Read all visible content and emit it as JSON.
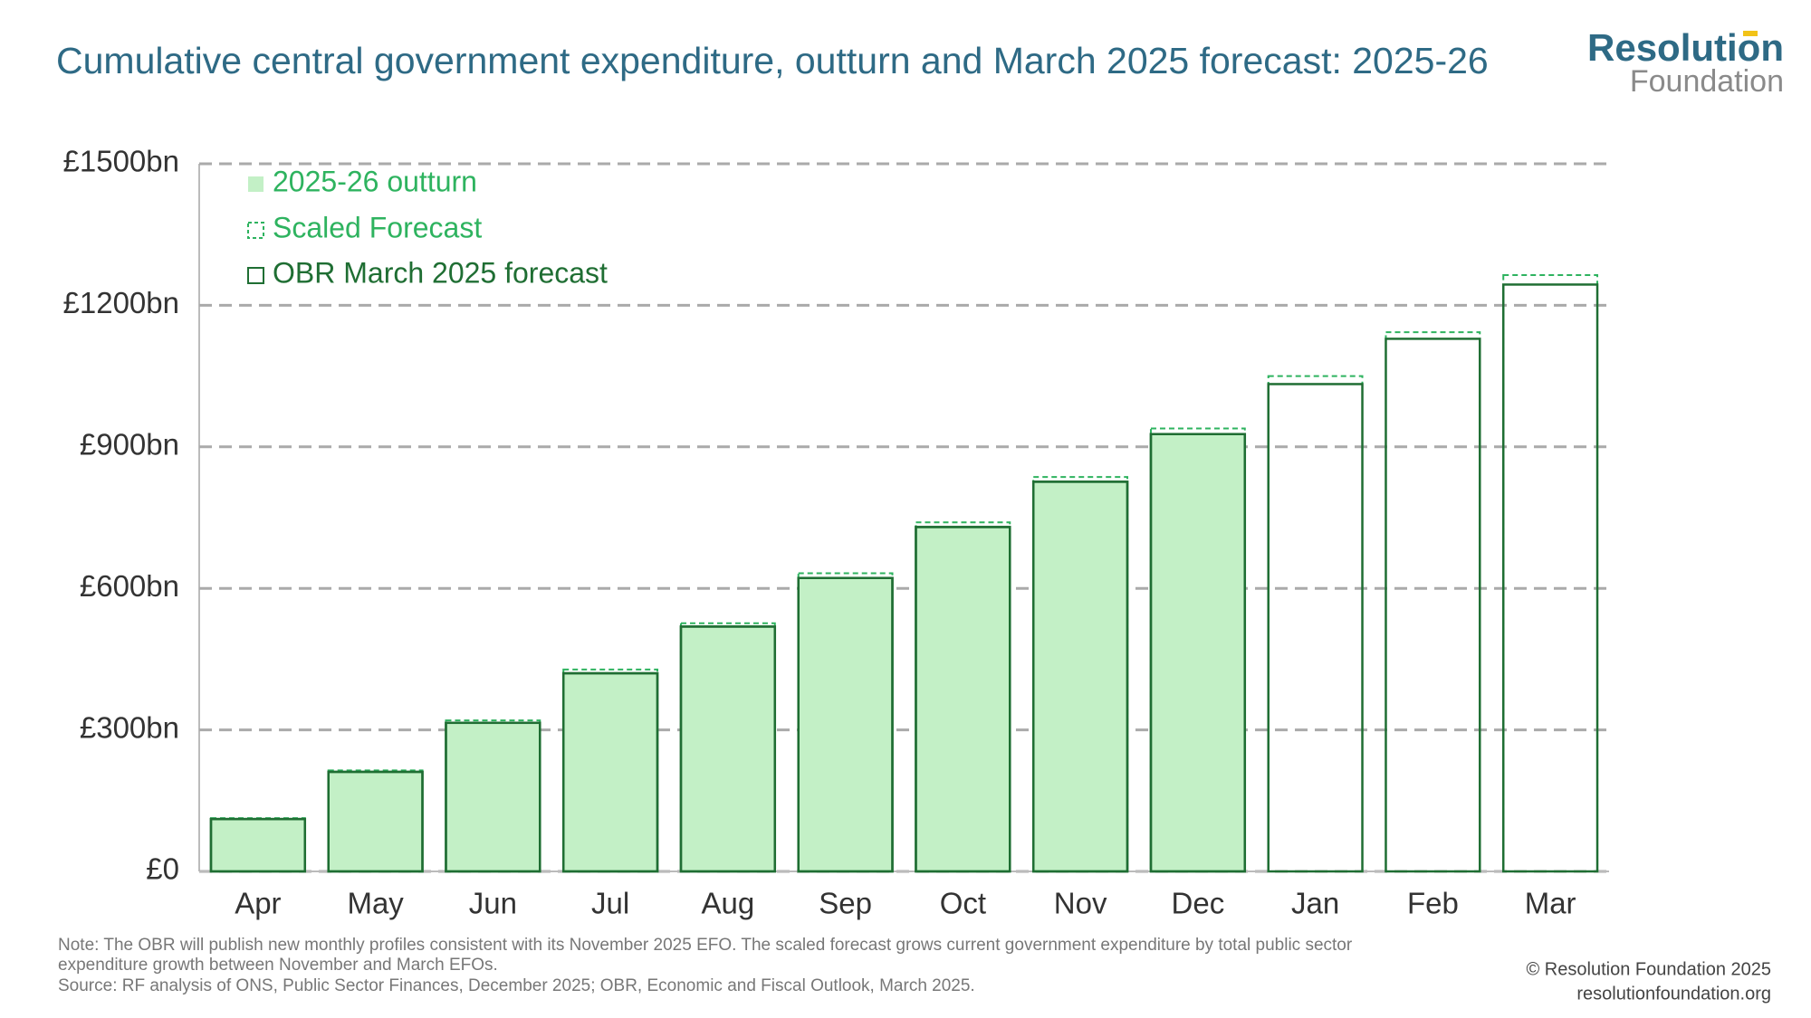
{
  "chart_data": {
    "type": "bar",
    "title": "Cumulative central government expenditure, outturn and March 2025 forecast: 2025-26",
    "brand": [
      "Resolution",
      "Foundation"
    ],
    "categories": [
      "Apr",
      "May",
      "Jun",
      "Jul",
      "Aug",
      "Sep",
      "Oct",
      "Nov",
      "Dec",
      "Jan",
      "Feb",
      "Mar"
    ],
    "series": [
      {
        "name": "2025-26 outturn",
        "color": "#c3f0c6",
        "values": [
          111,
          211,
          315,
          420,
          519,
          622,
          730,
          826,
          927,
          null,
          null,
          null
        ]
      },
      {
        "name": "Scaled Forecast",
        "color": "#2eb35f",
        "values": [
          113,
          214,
          320,
          428,
          526,
          632,
          740,
          836,
          939,
          1050,
          1143,
          1264
        ]
      },
      {
        "name": "OBR March 2025 forecast",
        "color": "#1f6e33",
        "values": [
          111,
          211,
          315,
          420,
          519,
          622,
          730,
          826,
          927,
          1033,
          1129,
          1244
        ]
      }
    ],
    "ylim": [
      0,
      1500
    ],
    "yticks": [
      {
        "value": 0,
        "label": "£0"
      },
      {
        "value": 300,
        "label": "£300bn"
      },
      {
        "value": 600,
        "label": "£600bn"
      },
      {
        "value": 900,
        "label": "£900bn"
      },
      {
        "value": 1200,
        "label": "£1200bn"
      },
      {
        "value": 1500,
        "label": "£1500bn"
      }
    ],
    "grid": true,
    "notes": [
      "Note: The OBR will publish new monthly profiles consistent with its November 2025 EFO. The scaled forecast grows current government expenditure by total public sector",
      "expenditure growth between November and March EFOs.",
      "Source: RF analysis of ONS, Public Sector Finances, December 2025; OBR, Economic and Fiscal Outlook, March 2025."
    ],
    "credits": [
      "© Resolution Foundation 2025",
      "resolutionfoundation.org"
    ]
  }
}
